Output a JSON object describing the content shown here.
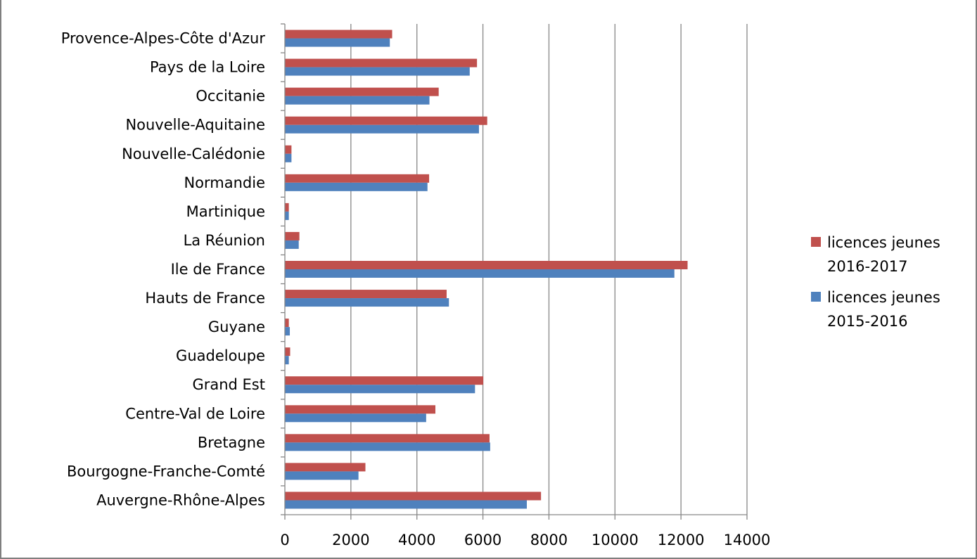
{
  "chart_data": {
    "type": "bar",
    "orientation": "horizontal",
    "title": "",
    "xlabel": "",
    "ylabel": "",
    "xlim": [
      0,
      14000
    ],
    "xticks": [
      0,
      2000,
      4000,
      6000,
      8000,
      10000,
      12000,
      14000
    ],
    "grid": true,
    "legend_position": "right",
    "categories": [
      "Provence-Alpes-Côte d'Azur",
      "Pays de la Loire",
      "Occitanie",
      "Nouvelle-Aquitaine",
      "Nouvelle-Calédonie",
      "Normandie",
      "Martinique",
      "La Réunion",
      "Ile de France",
      "Hauts de France",
      "Guyane",
      "Guadeloupe",
      "Grand Est",
      "Centre-Val de Loire",
      "Bretagne",
      "Bourgogne-Franche-Comté",
      "Auvergne-Rhône-Alpes"
    ],
    "series": [
      {
        "name": "licences jeunes 2016-2017",
        "legend_lines": [
          "licences jeunes",
          "2016-2017"
        ],
        "color": "#c0504d",
        "values": [
          3250,
          5820,
          4660,
          6130,
          200,
          4370,
          120,
          440,
          12200,
          4900,
          120,
          160,
          6010,
          4560,
          6200,
          2440,
          7760
        ]
      },
      {
        "name": "licences jeunes 2015-2016",
        "legend_lines": [
          "licences jeunes",
          "2015-2016"
        ],
        "color": "#4f81bd",
        "values": [
          3180,
          5600,
          4380,
          5880,
          200,
          4320,
          120,
          420,
          11800,
          4970,
          150,
          120,
          5760,
          4280,
          6220,
          2230,
          7330
        ]
      }
    ]
  },
  "colors": {
    "gridline": "#868686",
    "axis": "#868686",
    "frame": "#7f7f7f"
  }
}
